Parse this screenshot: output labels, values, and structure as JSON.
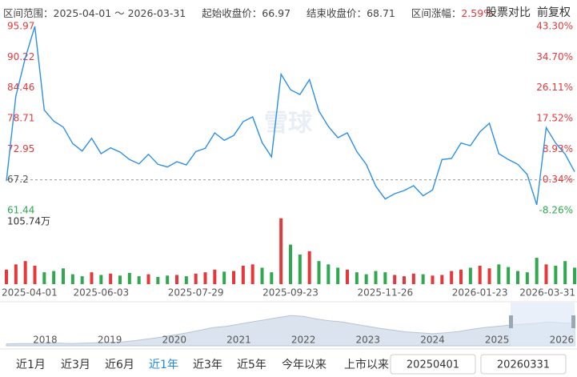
{
  "header": {
    "range_label": "区间范围：",
    "range": "2025-04-01 ～ 2026-03-31",
    "start_label": "起始收盘价：",
    "start": "66.97",
    "end_label": "结束收盘价：",
    "end": "68.71",
    "change_label": "区间涨幅：",
    "change": "2.59%",
    "compare": "股票对比",
    "adjust": "前复权"
  },
  "watermark": "雪球",
  "chart_data": [
    {
      "type": "line",
      "color": "#2d8fe8",
      "categories": [
        "2025-04-01",
        null,
        null,
        null,
        null,
        null,
        null,
        null,
        null,
        null,
        "2025-06-03",
        null,
        null,
        null,
        null,
        null,
        null,
        null,
        null,
        null,
        "2025-07-29",
        null,
        null,
        null,
        null,
        null,
        null,
        null,
        null,
        null,
        "2025-09-23",
        null,
        null,
        null,
        null,
        null,
        null,
        null,
        null,
        null,
        "2025-11-26",
        null,
        null,
        null,
        null,
        null,
        null,
        null,
        null,
        null,
        "2026-01-23",
        null,
        null,
        null,
        null,
        null,
        null,
        null,
        null,
        null,
        "2026-03-31"
      ],
      "values": [
        66.97,
        82.9,
        90.1,
        95.97,
        80.3,
        78.2,
        77.1,
        74.0,
        72.6,
        75.0,
        72.1,
        73.2,
        72.4,
        71.0,
        70.2,
        72.0,
        70.1,
        69.6,
        70.6,
        70.0,
        72.5,
        73.1,
        76.0,
        74.6,
        75.5,
        78.1,
        79.0,
        74.2,
        71.5,
        87.0,
        84.1,
        83.2,
        86.0,
        80.1,
        77.2,
        75.1,
        76.0,
        72.5,
        70.1,
        66.0,
        63.6,
        64.6,
        65.2,
        66.1,
        64.2,
        65.3,
        71.0,
        71.2,
        74.1,
        73.6,
        76.2,
        77.8,
        72.1,
        71.0,
        70.1,
        68.2,
        62.5,
        77.0,
        74.1,
        72.0,
        68.71
      ],
      "ylim": [
        61.44,
        95.97
      ],
      "yticks": [
        95.97,
        90.22,
        84.46,
        78.71,
        72.95,
        67.2,
        61.44
      ],
      "ytick_colors": [
        "#e5383b",
        "#e5383b",
        "#e5383b",
        "#e5383b",
        "#e5383b",
        "#555555",
        "#2fa84f"
      ],
      "y2lim": [
        -8.26,
        43.3
      ],
      "y2ticks": [
        {
          "value": 43.3,
          "label": "43.30%"
        },
        {
          "value": 34.7,
          "label": "34.70%"
        },
        {
          "value": 26.11,
          "label": "26.11%"
        },
        {
          "value": 17.52,
          "label": "17.52%"
        },
        {
          "value": 8.93,
          "label": "8.93%"
        },
        {
          "value": 0.34,
          "label": "0.34%"
        },
        {
          "value": -8.26,
          "label": "-8.26%"
        }
      ],
      "y2tick_colors": [
        "#e5383b",
        "#e5383b",
        "#e5383b",
        "#e5383b",
        "#e5383b",
        "#e5383b",
        "#2fa84f"
      ],
      "reference_line": 67.2,
      "grid": false
    },
    {
      "type": "bar",
      "up_color": "#e5383b",
      "down_color": "#2fa84f",
      "values": [
        22,
        30,
        35,
        28,
        18,
        20,
        24,
        15,
        12,
        18,
        14,
        16,
        13,
        17,
        12,
        15,
        11,
        13,
        14,
        12,
        16,
        18,
        22,
        19,
        20,
        28,
        30,
        25,
        18,
        100,
        60,
        45,
        50,
        35,
        30,
        25,
        22,
        18,
        15,
        20,
        18,
        14,
        12,
        16,
        15,
        13,
        14,
        20,
        22,
        25,
        28,
        24,
        30,
        26,
        20,
        18,
        40,
        30,
        28,
        35,
        25
      ],
      "ylim": [
        0,
        105.74
      ],
      "yticks": [
        {
          "value": 105.74,
          "label": "105.74万"
        }
      ]
    },
    {
      "type": "area",
      "color": "#dbe4ee",
      "stroke": "#b5c4d6",
      "categories": [
        null,
        null,
        null,
        "2018",
        null,
        null,
        null,
        null,
        "2019",
        null,
        null,
        null,
        null,
        "2020",
        null,
        null,
        null,
        null,
        "2021",
        null,
        null,
        null,
        null,
        "2022",
        null,
        null,
        null,
        null,
        "2023",
        null,
        null,
        null,
        null,
        "2024",
        null,
        null,
        null,
        null,
        "2025",
        null,
        null,
        null,
        null,
        "2026",
        null
      ],
      "values": [
        4,
        5,
        5,
        6,
        6,
        5,
        6,
        7,
        8,
        9,
        12,
        16,
        20,
        25,
        30,
        36,
        42,
        45,
        50,
        55,
        60,
        65,
        70,
        68,
        62,
        58,
        55,
        50,
        45,
        40,
        36,
        32,
        30,
        28,
        30,
        33,
        38,
        42,
        45,
        48,
        50,
        52,
        55,
        53,
        52
      ],
      "ylim": [
        0,
        100
      ]
    }
  ],
  "controls": {
    "ranges": [
      "近1月",
      "近3月",
      "近6月",
      "近1年",
      "近3年",
      "近5年",
      "今年以来",
      "上市以来"
    ],
    "active": 3,
    "start_date": "20250401",
    "end_date": "20260331"
  }
}
